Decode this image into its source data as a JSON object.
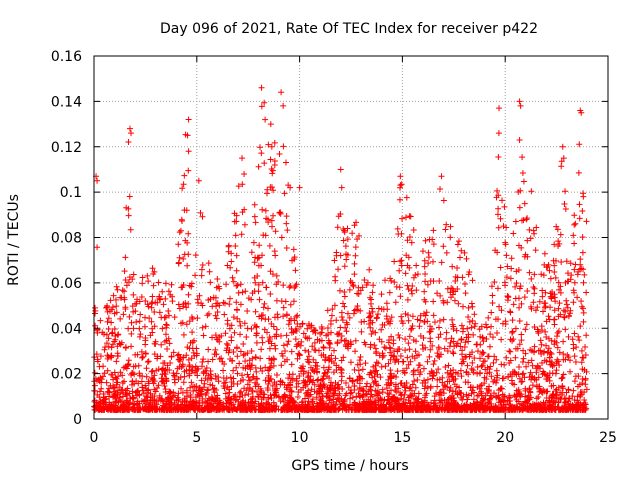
{
  "chart_data": {
    "type": "scatter",
    "title": "Day 096 of 2021, Rate Of TEC Index for receiver p422",
    "xlabel": "GPS time / hours",
    "ylabel": "ROTI / TECUs",
    "xlim": [
      0,
      25
    ],
    "ylim": [
      0,
      0.16
    ],
    "x_ticks": [
      0,
      5,
      10,
      15,
      20,
      25
    ],
    "x_tick_labels": [
      "0",
      "5",
      "10",
      "15",
      "20",
      "25"
    ],
    "y_ticks": [
      0,
      0.02,
      0.04,
      0.06,
      0.08,
      0.1,
      0.12,
      0.14,
      0.16
    ],
    "y_tick_labels": [
      "0",
      "0.02",
      "0.04",
      "0.06",
      "0.08",
      "0.1",
      "0.12",
      "0.14",
      "0.16"
    ],
    "grid": true,
    "marker": "plus",
    "marker_color": "#ff0000",
    "data_range_x": [
      0,
      24
    ],
    "series": [
      {
        "name": "ROTI",
        "color": "#ff0000",
        "seed": 96,
        "background_points": 4200,
        "envelope": [
          [
            0.0,
            0.05
          ],
          [
            0.1,
            0.107
          ],
          [
            0.3,
            0.05
          ],
          [
            1.0,
            0.06
          ],
          [
            1.3,
            0.055
          ],
          [
            1.7,
            0.128
          ],
          [
            2.0,
            0.05
          ],
          [
            2.5,
            0.07
          ],
          [
            3.3,
            0.063
          ],
          [
            4.0,
            0.065
          ],
          [
            4.5,
            0.132
          ],
          [
            4.8,
            0.06
          ],
          [
            5.2,
            0.105
          ],
          [
            5.5,
            0.07
          ],
          [
            6.2,
            0.06
          ],
          [
            7.2,
            0.115
          ],
          [
            7.5,
            0.06
          ],
          [
            8.2,
            0.146
          ],
          [
            8.4,
            0.14
          ],
          [
            8.8,
            0.125
          ],
          [
            9.2,
            0.144
          ],
          [
            9.6,
            0.1
          ],
          [
            10.0,
            0.05
          ],
          [
            10.8,
            0.04
          ],
          [
            11.5,
            0.05
          ],
          [
            12.0,
            0.11
          ],
          [
            12.5,
            0.09
          ],
          [
            13.0,
            0.09
          ],
          [
            13.8,
            0.05
          ],
          [
            14.5,
            0.075
          ],
          [
            14.9,
            0.107
          ],
          [
            15.5,
            0.09
          ],
          [
            16.2,
            0.08
          ],
          [
            16.9,
            0.107
          ],
          [
            17.5,
            0.085
          ],
          [
            18.0,
            0.075
          ],
          [
            18.8,
            0.05
          ],
          [
            19.3,
            0.05
          ],
          [
            19.7,
            0.137
          ],
          [
            20.2,
            0.07
          ],
          [
            20.7,
            0.14
          ],
          [
            21.3,
            0.1
          ],
          [
            21.8,
            0.08
          ],
          [
            22.3,
            0.07
          ],
          [
            22.8,
            0.12
          ],
          [
            23.2,
            0.07
          ],
          [
            23.7,
            0.136
          ],
          [
            24.0,
            0.09
          ]
        ],
        "outliers": [
          [
            0.1,
            0.107
          ],
          [
            0.15,
            0.105
          ],
          [
            1.75,
            0.128
          ],
          [
            1.8,
            0.126
          ],
          [
            4.6,
            0.132
          ],
          [
            4.55,
            0.125
          ],
          [
            4.6,
            0.118
          ],
          [
            5.1,
            0.105
          ],
          [
            7.2,
            0.115
          ],
          [
            7.3,
            0.108
          ],
          [
            8.15,
            0.146
          ],
          [
            8.6,
            0.13
          ],
          [
            8.65,
            0.12
          ],
          [
            9.1,
            0.144
          ],
          [
            9.2,
            0.138
          ],
          [
            10.0,
            0.102
          ],
          [
            12.0,
            0.11
          ],
          [
            12.05,
            0.102
          ],
          [
            14.9,
            0.107
          ],
          [
            16.9,
            0.107
          ],
          [
            19.7,
            0.137
          ],
          [
            20.7,
            0.14
          ],
          [
            20.75,
            0.138
          ],
          [
            20.7,
            0.123
          ],
          [
            22.8,
            0.12
          ],
          [
            22.85,
            0.115
          ],
          [
            23.65,
            0.136
          ],
          [
            23.7,
            0.135
          ],
          [
            23.8,
            0.098
          ]
        ]
      }
    ]
  }
}
